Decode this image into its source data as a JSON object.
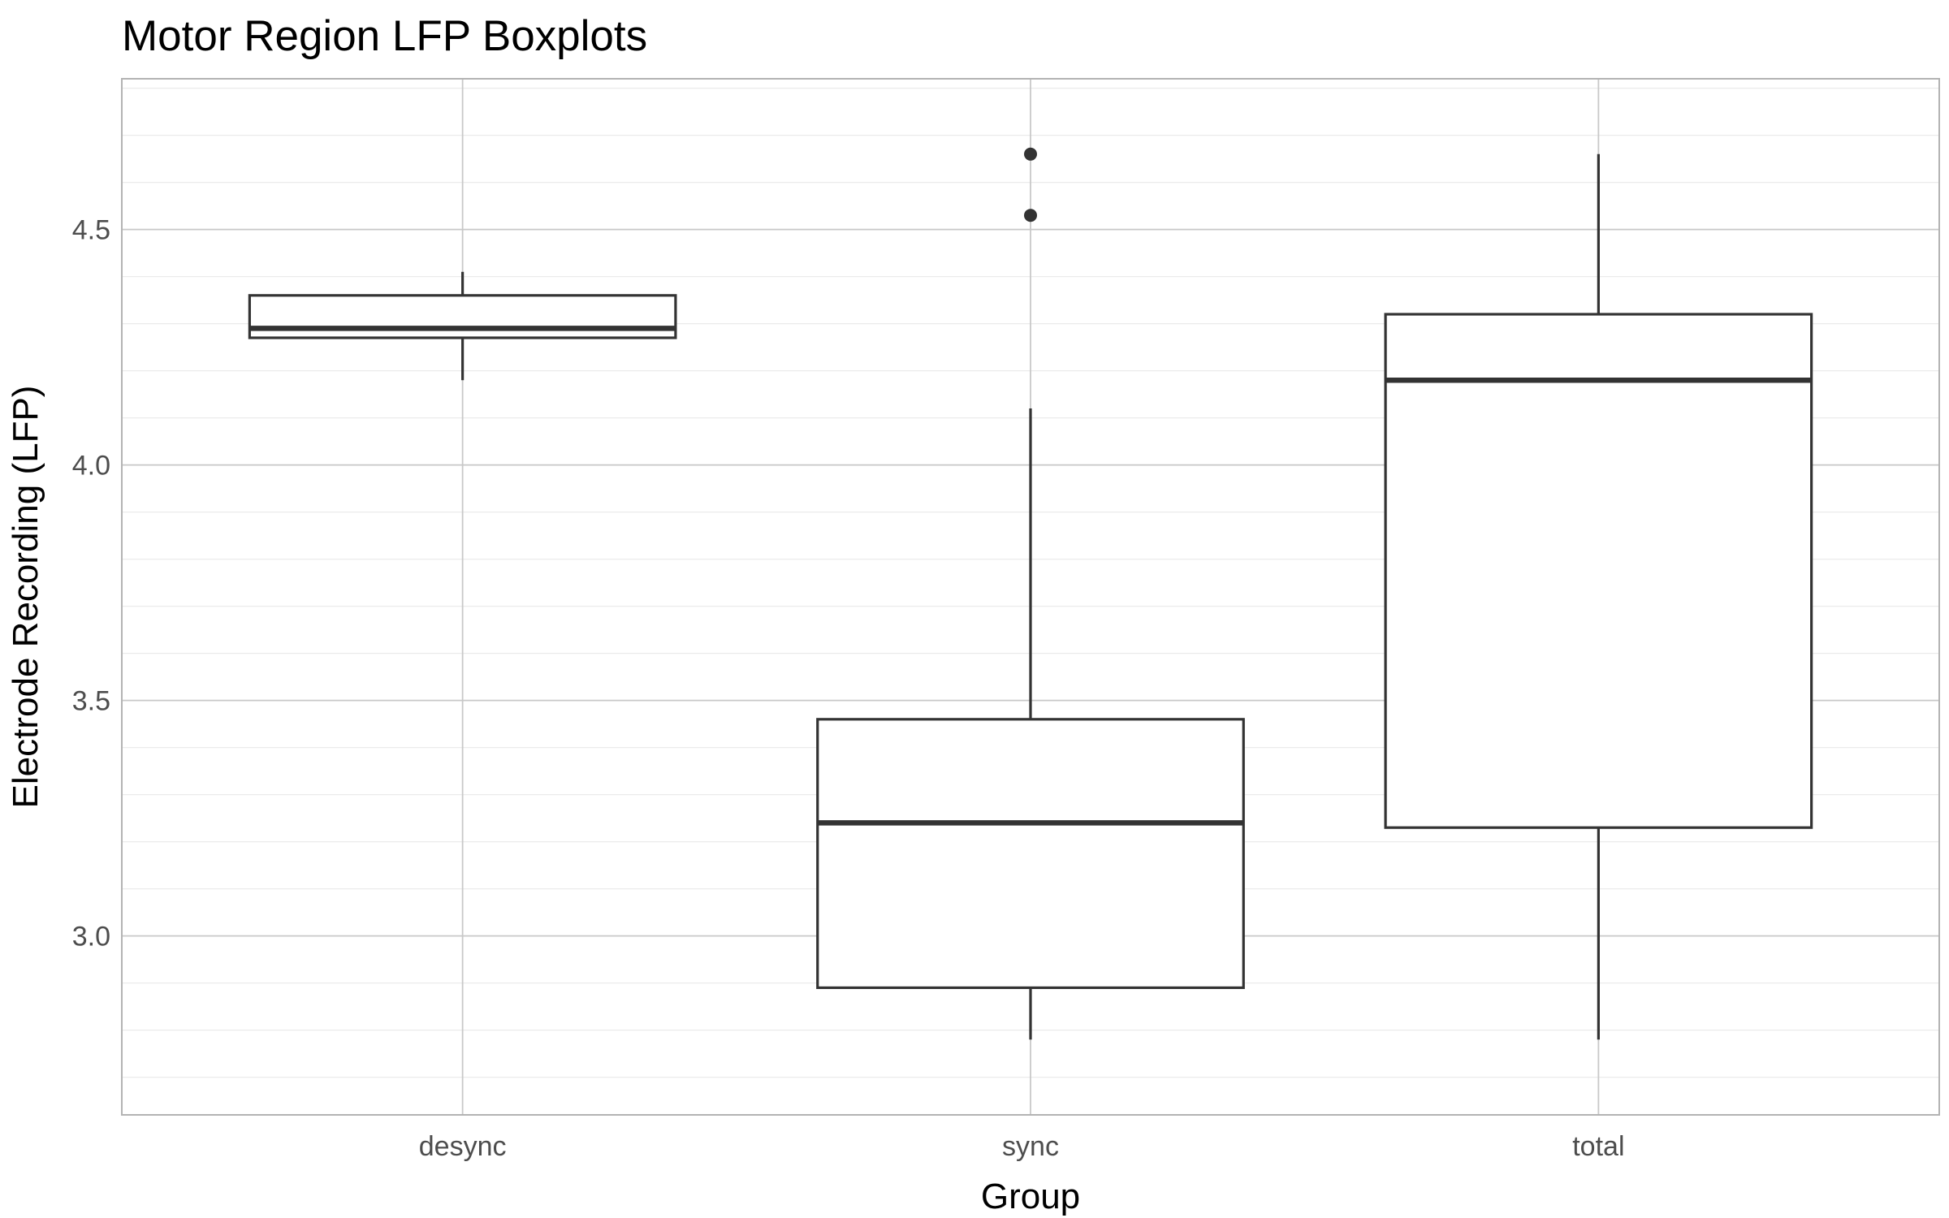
{
  "chart_data": {
    "type": "boxplot",
    "title": "Motor Region LFP Boxplots",
    "xlabel": "Group",
    "ylabel": "Electrode Recording (LFP)",
    "categories": [
      "desync",
      "sync",
      "total"
    ],
    "ylim": [
      2.62,
      4.82
    ],
    "yticks": [
      3.0,
      3.5,
      4.0,
      4.5
    ],
    "ytick_labels": [
      "3.0",
      "3.5",
      "4.0",
      "4.5"
    ],
    "grid": true,
    "boxes": [
      {
        "group": "desync",
        "whisker_low": 4.18,
        "q1": 4.27,
        "median": 4.29,
        "q3": 4.36,
        "whisker_high": 4.41,
        "outliers": []
      },
      {
        "group": "sync",
        "whisker_low": 2.78,
        "q1": 2.89,
        "median": 3.24,
        "q3": 3.46,
        "whisker_high": 4.12,
        "outliers": [
          4.53,
          4.66
        ]
      },
      {
        "group": "total",
        "whisker_low": 2.78,
        "q1": 3.23,
        "median": 4.18,
        "q3": 4.32,
        "whisker_high": 4.66,
        "outliers": []
      }
    ],
    "colors": {
      "box_stroke": "#333333",
      "box_fill": "#ffffff",
      "grid_major": "#c8c8c8",
      "grid_minor": "#ebebeb",
      "panel_border": "#b3b3b3",
      "tick_text": "#4d4d4d"
    }
  }
}
